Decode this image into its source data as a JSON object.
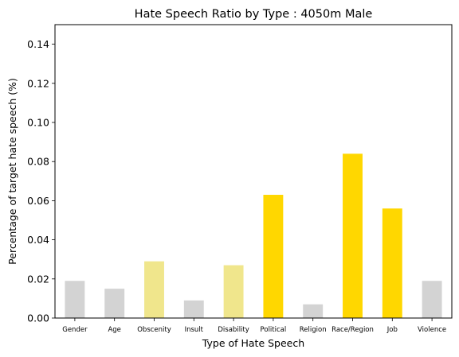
{
  "chart_data": {
    "type": "bar",
    "title": "Hate Speech Ratio by Type : 4050m Male",
    "xlabel": "Type of Hate Speech",
    "ylabel": "Percentage of target hate speech (%)",
    "ylim": [
      0,
      0.15
    ],
    "yticks": [
      "0.00",
      "0.02",
      "0.04",
      "0.06",
      "0.08",
      "0.10",
      "0.12",
      "0.14"
    ],
    "categories": [
      "Gender",
      "Age",
      "Obscenity",
      "Insult",
      "Disability",
      "Political",
      "Religion",
      "Race/Region",
      "Job",
      "Violence"
    ],
    "values": [
      0.019,
      0.015,
      0.029,
      0.009,
      0.027,
      0.063,
      0.007,
      0.084,
      0.056,
      0.019
    ],
    "colors": [
      "#d3d3d3",
      "#d3d3d3",
      "#f0e68c",
      "#d3d3d3",
      "#f0e68c",
      "#ffd700",
      "#d3d3d3",
      "#ffd700",
      "#ffd700",
      "#d3d3d3"
    ],
    "grid": false,
    "legend": "none"
  }
}
